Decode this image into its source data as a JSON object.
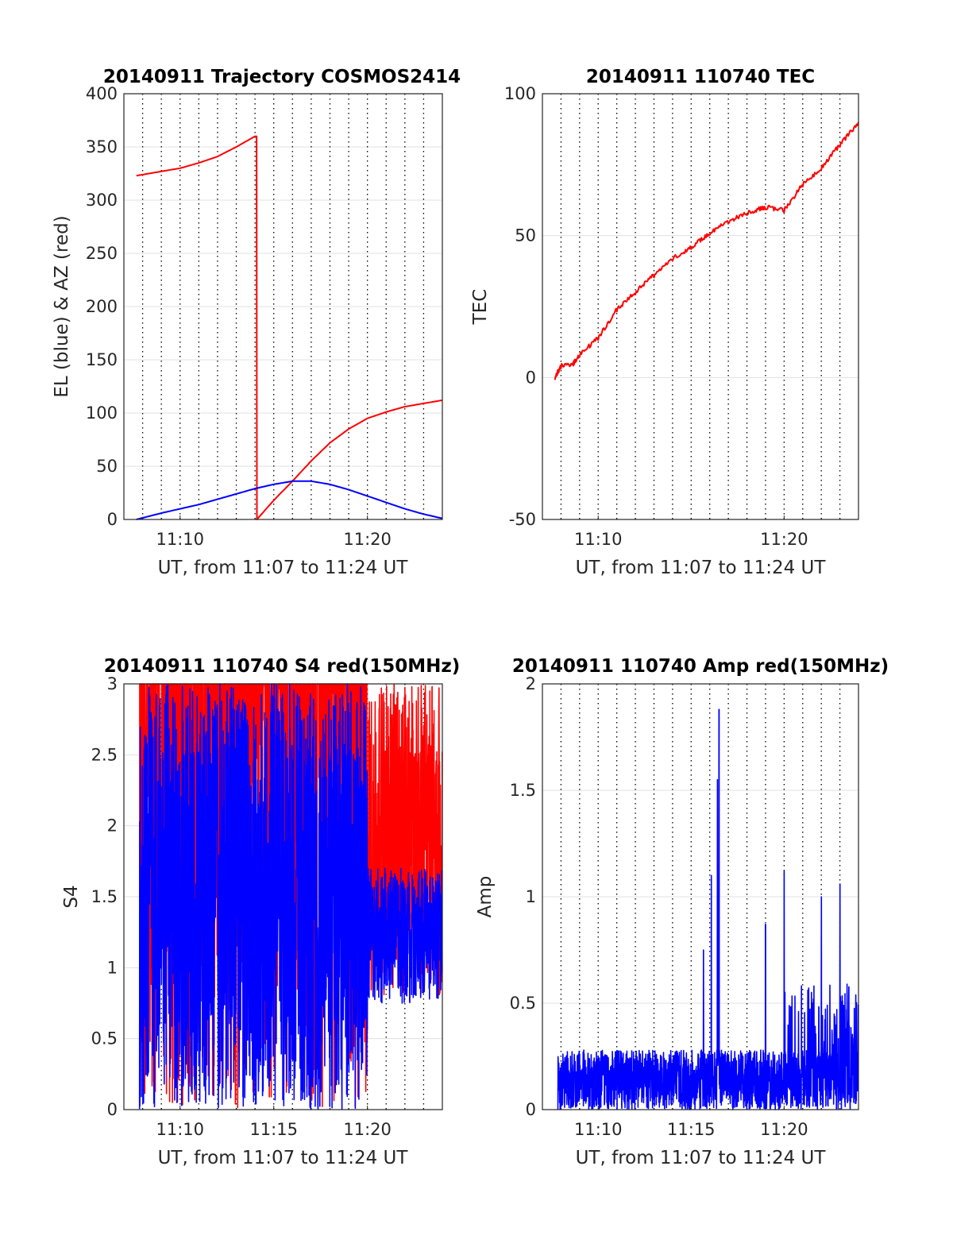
{
  "colors": {
    "red": "#ff0000",
    "blue": "#0000ff",
    "grid_major": "#000000",
    "grid_minor": "#e0e0e0"
  },
  "chart_data": [
    {
      "type": "line",
      "title": "20140911 Trajectory COSMOS2414",
      "xlabel": "UT, from 11:07 to 11:24 UT",
      "ylabel": "EL (blue) & AZ (red)",
      "xlim_minutes": [
        "11:07",
        "11:24"
      ],
      "ylim": [
        0,
        400
      ],
      "yticks": [
        0,
        50,
        100,
        150,
        200,
        250,
        300,
        350,
        400
      ],
      "xticks": [
        "11:10",
        "11:20"
      ],
      "grid": true,
      "series": [
        {
          "color": "red",
          "x": [
            "11:07:40",
            "11:09",
            "11:10",
            "11:11",
            "11:12",
            "11:13",
            "11:14",
            "11:14:05",
            "11:14:06",
            "11:15",
            "11:16",
            "11:17",
            "11:18",
            "11:19",
            "11:20",
            "11:21",
            "11:22",
            "11:23",
            "11:24"
          ],
          "y": [
            323,
            327,
            330,
            335,
            341,
            350,
            360,
            360,
            0,
            18,
            36,
            55,
            72,
            85,
            95,
            101,
            106,
            109,
            112
          ]
        },
        {
          "color": "blue",
          "x": [
            "11:07:40",
            "11:09",
            "11:10",
            "11:11",
            "11:12",
            "11:13",
            "11:14",
            "11:15",
            "11:16",
            "11:17",
            "11:18",
            "11:19",
            "11:20",
            "11:21",
            "11:22",
            "11:23",
            "11:24"
          ],
          "y": [
            0,
            6,
            10,
            14,
            19,
            24,
            29,
            33,
            36,
            36,
            33,
            28,
            22,
            16,
            10,
            5,
            1
          ]
        }
      ]
    },
    {
      "type": "line",
      "title": "20140911 110740 TEC",
      "xlabel": "UT, from 11:07 to 11:24 UT",
      "ylabel": "TEC",
      "ylim": [
        -50,
        100
      ],
      "yticks": [
        -50,
        0,
        50,
        100
      ],
      "xticks": [
        "11:10",
        "11:20"
      ],
      "grid": true,
      "series": [
        {
          "color": "red",
          "x": [
            "11:07:40",
            "11:08",
            "11:08:40",
            "11:09",
            "11:10",
            "11:11",
            "11:12",
            "11:13",
            "11:14",
            "11:15",
            "11:16",
            "11:17",
            "11:18",
            "11:19",
            "11:20",
            "11:21",
            "11:22",
            "11:23",
            "11:24"
          ],
          "y": [
            0,
            4,
            5,
            8,
            14,
            24,
            30,
            36,
            42,
            46,
            51,
            55,
            58,
            60,
            59,
            68,
            74,
            82,
            90
          ]
        }
      ]
    },
    {
      "type": "line",
      "title": "20140911 110740 S4 red(150MHz)",
      "xlabel": "UT, from 11:07 to 11:24 UT",
      "ylabel": "S4",
      "ylim": [
        0,
        3
      ],
      "yticks": [
        0,
        0.5,
        1,
        1.5,
        2,
        2.5,
        3
      ],
      "xticks": [
        "11:10",
        "11:15",
        "11:20"
      ],
      "grid": true,
      "series": [
        {
          "color": "red",
          "style": "dense noisy trace, mostly saturated at 3 before 11:20, 0.8–3 afterwards"
        },
        {
          "color": "blue",
          "style": "dense noisy trace, 0–3 before 11:20, 0.7–1.7 afterwards"
        }
      ]
    },
    {
      "type": "line",
      "title": "20140911 110740 Amp red(150MHz)",
      "xlabel": "UT, from 11:07 to 11:24 UT",
      "ylabel": "Amp",
      "ylim": [
        0,
        2
      ],
      "yticks": [
        0,
        0.5,
        1,
        1.5,
        2
      ],
      "xticks": [
        "11:10",
        "11:15",
        "11:20"
      ],
      "grid": true,
      "series": [
        {
          "color": "blue",
          "style": "dense noisy trace 0–0.3, spikes at 11:15:40 (0.75), 11:16:30 (1.88), 11:19 (0.87), 11:20 (1.12), 11:22 (1.0), 11:23 (1.06)"
        }
      ]
    }
  ]
}
